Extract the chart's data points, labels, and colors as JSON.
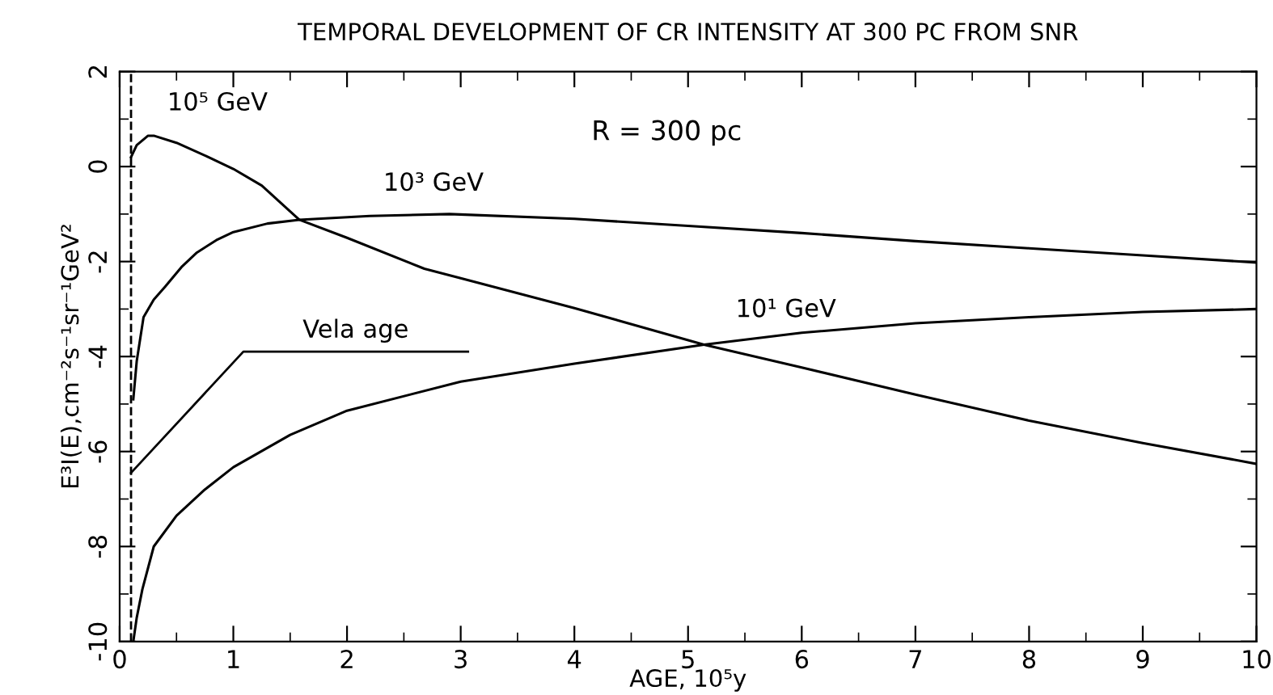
{
  "chart_data": {
    "type": "line",
    "title": "TEMPORAL DEVELOPMENT OF CR INTENSITY AT 300 PC FROM SNR",
    "xlabel": "AGE, 10⁵y",
    "ylabel": "E³I(E),cm⁻²s⁻¹sr⁻¹GeV²",
    "series": [
      {
        "color": "#000000",
        "x": [
          0.1,
          0.15,
          0.25,
          0.3,
          0.5,
          0.78,
          1.0,
          1.25,
          1.58,
          2.0,
          2.68,
          3.0,
          4.0,
          5.14,
          6.0,
          7.0,
          8.0,
          9.0,
          10.0
        ],
        "values": [
          0.2,
          0.45,
          0.65,
          0.65,
          0.5,
          0.2,
          -0.05,
          -0.4,
          -1.12,
          -1.5,
          -2.15,
          -2.35,
          -2.98,
          -3.75,
          -4.23,
          -4.8,
          -5.35,
          -5.82,
          -6.26
        ]
      },
      {
        "color": "#000000",
        "x": [
          0.12,
          0.15,
          0.21,
          0.3,
          0.4,
          0.55,
          0.68,
          0.85,
          1.0,
          1.3,
          1.58,
          2.2,
          2.9,
          4.0,
          5.0,
          6.0,
          7.0,
          8.0,
          9.0,
          10.0
        ],
        "values": [
          -4.9,
          -4.1,
          -3.17,
          -2.8,
          -2.53,
          -2.1,
          -1.81,
          -1.55,
          -1.38,
          -1.2,
          -1.12,
          -1.04,
          -1.0,
          -1.1,
          -1.25,
          -1.4,
          -1.57,
          -1.72,
          -1.87,
          -2.02
        ]
      },
      {
        "color": "#000000",
        "x": [
          0.12,
          0.15,
          0.2,
          0.3,
          0.5,
          0.75,
          1.0,
          1.5,
          2.0,
          3.0,
          4.0,
          5.14,
          6.0,
          7.0,
          8.0,
          9.0,
          10.0
        ],
        "values": [
          -10,
          -9.5,
          -8.9,
          -8.0,
          -7.35,
          -6.8,
          -6.33,
          -5.65,
          -5.14,
          -4.53,
          -4.15,
          -3.75,
          -3.5,
          -3.3,
          -3.17,
          -3.06,
          -3.0
        ]
      }
    ],
    "xlim": [
      0,
      10
    ],
    "ylim": [
      -10,
      2
    ],
    "xticks": [
      0,
      {
        "value": 0.5,
        "label": null
      },
      1,
      {
        "value": 1.5,
        "label": null
      },
      2,
      {
        "value": 2.5,
        "label": null
      },
      3,
      {
        "value": 3.5,
        "label": null
      },
      4,
      {
        "value": 4.5,
        "label": null
      },
      5,
      {
        "value": 5.5,
        "label": null
      },
      6,
      {
        "value": 6.5,
        "label": null
      },
      7,
      {
        "value": 7.5,
        "label": null
      },
      8,
      {
        "value": 8.5,
        "label": null
      },
      9,
      {
        "value": 9.5,
        "label": null
      },
      10
    ],
    "yticks": [
      -10,
      {
        "value": -9,
        "label": null
      },
      -8,
      {
        "value": -7,
        "label": null
      },
      -6,
      {
        "value": -5,
        "label": null
      },
      -4,
      {
        "value": -3,
        "label": null
      },
      -2,
      {
        "value": -1,
        "label": null
      },
      0,
      {
        "value": 1,
        "label": null
      },
      2
    ],
    "ref_lines": [
      {
        "axis": "x",
        "value": 0.1,
        "color": "#000000",
        "line_style": "dashed"
      }
    ],
    "annotations": [
      {
        "text": "10⁵ GeV",
        "x": 0.3,
        "y": 0.65
      },
      {
        "text": "10³ GeV",
        "x": 2.2,
        "y": -1.04
      },
      {
        "text": "10¹ GeV",
        "x": 5.3,
        "y": -3.7
      },
      "R = 300 pc",
      {
        "text": "Vela age",
        "x": 0.1,
        "y": -6.45
      }
    ],
    "marker": "none",
    "line_style": "solid"
  }
}
